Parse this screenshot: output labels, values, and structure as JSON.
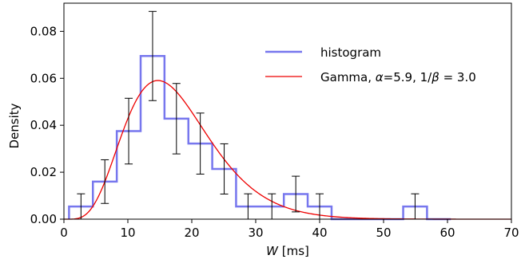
{
  "chart_data": {
    "type": "histogram",
    "xlabel_italic": "W",
    "xlabel_unit": " [ms]",
    "ylabel": "Density",
    "xlim": [
      0,
      70
    ],
    "ylim": [
      0,
      0.092
    ],
    "xticks": [
      0,
      10,
      20,
      30,
      40,
      50,
      60,
      70
    ],
    "xtick_labels": [
      "0",
      "10",
      "20",
      "30",
      "40",
      "50",
      "60",
      "70"
    ],
    "yticks": [
      0,
      0.02,
      0.04,
      0.06,
      0.08
    ],
    "ytick_labels": [
      "0.00",
      "0.02",
      "0.04",
      "0.06",
      "0.08"
    ],
    "grid": false,
    "legend_position": "upper-right",
    "legend": [
      {
        "label": "histogram"
      },
      {
        "prefix": "Gamma, ",
        "alpha_symbol": "α",
        "alpha_value": "=5.9, 1/",
        "beta_symbol": "β",
        "suffix": " = 3.0"
      }
    ],
    "histogram": {
      "name": "histogram",
      "color": "#7777ee",
      "bin_edges": [
        0.8,
        4.53,
        8.27,
        12.0,
        15.73,
        19.47,
        23.2,
        26.93,
        30.67,
        34.4,
        38.13,
        41.87,
        45.6,
        49.33,
        53.07,
        56.8,
        60.53
      ],
      "densities": [
        0.0054,
        0.016,
        0.0375,
        0.0695,
        0.0428,
        0.0322,
        0.0214,
        0.0054,
        0.0054,
        0.0107,
        0.0054,
        0.0,
        0.0,
        0.0,
        0.0054,
        0.0
      ],
      "error_bar_x": [
        2.67,
        6.4,
        10.13,
        13.87,
        17.6,
        21.33,
        25.07,
        28.8,
        32.53,
        36.27,
        40.0,
        43.73,
        47.47,
        51.2,
        54.93,
        58.67
      ],
      "error_bar_y": [
        0.0054,
        0.016,
        0.0375,
        0.0695,
        0.0428,
        0.0322,
        0.0214,
        0.0054,
        0.0054,
        0.0107,
        0.0054,
        0.0,
        0.0,
        0.0,
        0.0054,
        0.0
      ],
      "error_bar_err": [
        0.0054,
        0.0093,
        0.014,
        0.019,
        0.015,
        0.013,
        0.0107,
        0.0054,
        0.0054,
        0.0076,
        0.0054,
        0.0,
        0.0,
        0.0,
        0.0054,
        0.0
      ]
    },
    "fit": {
      "name": "Gamma",
      "color": "#ee0000",
      "shape_alpha": 5.9,
      "scale": 3.0,
      "x_range": [
        0,
        70
      ]
    }
  }
}
